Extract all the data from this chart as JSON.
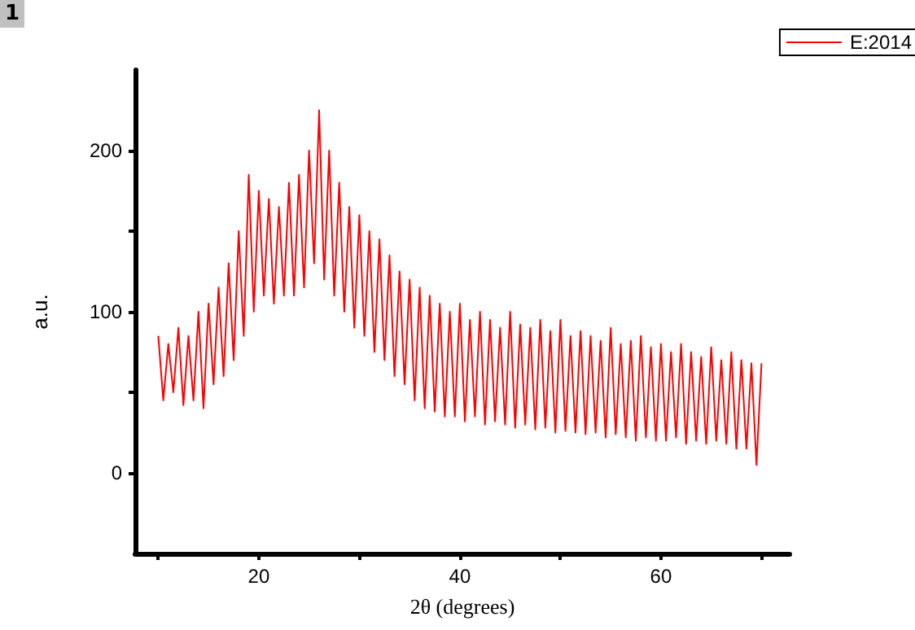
{
  "chart_data": {
    "type": "line",
    "xlabel": "2θ (degrees)",
    "ylabel": "a.u.",
    "annotations": [
      "1"
    ],
    "legend": "top right",
    "grid": false,
    "marker": "none",
    "line_style": "solid",
    "xlim": [
      7.7,
      72.8
    ],
    "ylim": [
      -50,
      250
    ],
    "xticks": [
      {
        "value": 10,
        "label": null
      },
      20,
      {
        "value": 30,
        "label": null
      },
      40,
      {
        "value": 50,
        "label": null
      },
      60,
      {
        "value": 70,
        "label": null
      }
    ],
    "yticks": [
      0,
      {
        "value": 50,
        "label": null
      },
      100,
      {
        "value": 150,
        "label": null
      },
      200
    ],
    "x": [
      10,
      10.5,
      11,
      11.5,
      12,
      12.5,
      13,
      13.5,
      14,
      14.5,
      15,
      15.5,
      16,
      16.5,
      17,
      17.5,
      18,
      18.5,
      19,
      19.5,
      20,
      20.5,
      21,
      21.5,
      22,
      22.5,
      23,
      23.5,
      24,
      24.5,
      25,
      25.5,
      26,
      26.5,
      27,
      27.5,
      28,
      28.5,
      29,
      29.5,
      30,
      30.5,
      31,
      31.5,
      32,
      32.5,
      33,
      33.5,
      34,
      34.5,
      35,
      35.5,
      36,
      36.5,
      37,
      37.5,
      38,
      38.5,
      39,
      39.5,
      40,
      40.5,
      41,
      41.5,
      42,
      42.5,
      43,
      43.5,
      44,
      44.5,
      45,
      45.5,
      46,
      46.5,
      47,
      47.5,
      48,
      48.5,
      49,
      49.5,
      50,
      50.5,
      51,
      51.5,
      52,
      52.5,
      53,
      53.5,
      54,
      54.5,
      55,
      55.5,
      56,
      56.5,
      57,
      57.5,
      58,
      58.5,
      59,
      59.5,
      60,
      60.5,
      61,
      61.5,
      62,
      62.5,
      63,
      63.5,
      64,
      64.5,
      65,
      65.5,
      66,
      66.5,
      67,
      67.5,
      68,
      68.5,
      69,
      69.5,
      70
    ],
    "series": [
      {
        "name": "E:2014",
        "color": "#ff0000",
        "values": [
          85,
          45,
          80,
          50,
          90,
          42,
          85,
          45,
          100,
          40,
          105,
          55,
          115,
          60,
          130,
          70,
          150,
          85,
          185,
          100,
          175,
          110,
          170,
          105,
          165,
          110,
          180,
          110,
          185,
          115,
          200,
          130,
          225,
          120,
          200,
          110,
          180,
          100,
          165,
          90,
          160,
          85,
          150,
          75,
          145,
          70,
          135,
          60,
          125,
          55,
          120,
          45,
          115,
          40,
          110,
          38,
          105,
          35,
          100,
          35,
          105,
          32,
          95,
          35,
          100,
          30,
          95,
          32,
          90,
          30,
          100,
          28,
          92,
          30,
          90,
          27,
          95,
          28,
          88,
          25,
          95,
          26,
          85,
          25,
          88,
          24,
          85,
          25,
          82,
          22,
          90,
          24,
          80,
          22,
          82,
          20,
          85,
          22,
          78,
          20,
          80,
          20,
          75,
          22,
          80,
          18,
          75,
          20,
          72,
          18,
          78,
          20,
          70,
          18,
          75,
          15,
          70,
          15,
          68,
          5,
          68
        ]
      }
    ]
  }
}
